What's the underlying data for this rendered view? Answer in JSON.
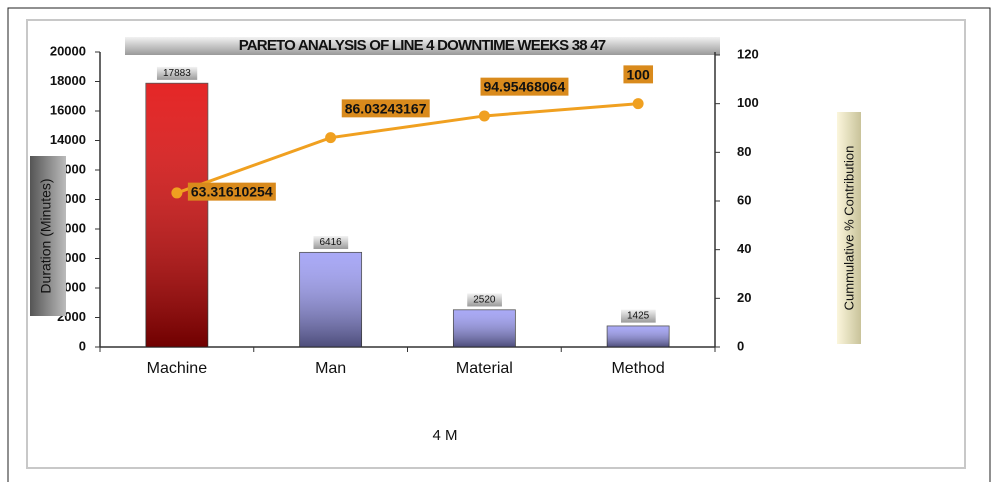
{
  "chart_data": {
    "type": "bar",
    "title": "PARETO ANALYSIS OF LINE 4 DOWNTIME WEEKS 38 47",
    "x_label": "4 M",
    "y_label": "Duration (Minutes)",
    "y2_label": "Cummulative % Contribution",
    "categories": [
      "Machine",
      "Man",
      "Material",
      "Method"
    ],
    "series": [
      {
        "type": "bar",
        "colors": [
          "#e00000",
          "#9a9af5",
          "#9a9af5",
          "#9a9af5"
        ],
        "values": [
          17883,
          6416,
          2520,
          1425
        ]
      },
      {
        "type": "line",
        "axis": "y2",
        "color": "#f0a020",
        "values": [
          63.31610254,
          86.03243167,
          94.95468064,
          100
        ]
      }
    ],
    "ylim": [
      0,
      20000
    ],
    "yticks": [
      0,
      2000,
      4000,
      6000,
      8000,
      10000,
      12000,
      14000,
      16000,
      18000,
      20000
    ],
    "y2lim": [
      0,
      120
    ],
    "y2ticks": [
      0,
      20,
      40,
      60,
      80,
      100,
      120
    ],
    "grid": false
  }
}
